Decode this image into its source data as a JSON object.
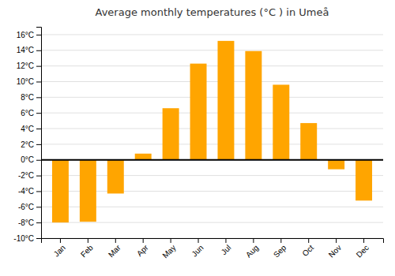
{
  "chart_data": {
    "type": "bar",
    "title": "Average monthly temperatures (°C ) in Umeå",
    "categories": [
      "Jan",
      "Feb",
      "Mar",
      "Apr",
      "May",
      "Jun",
      "Jul",
      "Aug",
      "Sep",
      "Oct",
      "Nov",
      "Dec"
    ],
    "values": [
      -8.0,
      -7.9,
      -4.3,
      0.8,
      6.6,
      12.3,
      15.2,
      13.9,
      9.6,
      4.7,
      -1.2,
      -5.2
    ],
    "color": "#FFA500",
    "ylim": [
      -10,
      17
    ],
    "yticks": [
      {
        "value": -10,
        "label": "-10°C"
      },
      {
        "value": -8,
        "label": "-8°C"
      },
      {
        "value": -6,
        "label": "-6°C"
      },
      {
        "value": -4,
        "label": "-4°C"
      },
      {
        "value": -2,
        "label": "-2°C"
      },
      {
        "value": 0,
        "label": "0°C"
      },
      {
        "value": 2,
        "label": "2°C"
      },
      {
        "value": 4,
        "label": "4°C"
      },
      {
        "value": 6,
        "label": "6°C"
      },
      {
        "value": 8,
        "label": "8°C"
      },
      {
        "value": 10,
        "label": "10°C"
      },
      {
        "value": 12,
        "label": "12°C"
      },
      {
        "value": 14,
        "label": "14°C"
      },
      {
        "value": 16,
        "label": "16°C"
      }
    ],
    "grid": true
  }
}
